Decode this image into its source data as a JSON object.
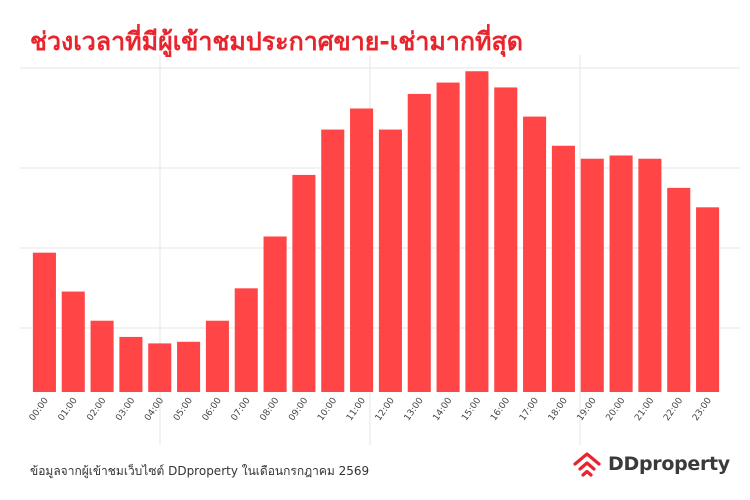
{
  "title": "ช่วงเวลาที่มีผู้เข้าชมประกาศขาย-เช่ามากที่สุด",
  "footnote": "ข้อมูลจากผู้เข้าชมเว็บไซต์ DDproperty ในเดือนกรกฎาคม 2569",
  "brand": {
    "name": "DDproperty",
    "logo_icon": "ddproperty-roof-logo-icon",
    "color": "#e8242d"
  },
  "colors": {
    "bar": "#ff4545",
    "title": "#e8242d",
    "grid": "#e6e6e6"
  },
  "chart_data": {
    "type": "bar",
    "categories": [
      "00:00",
      "01:00",
      "02:00",
      "03:00",
      "04:00",
      "05:00",
      "06:00",
      "07:00",
      "08:00",
      "09:00",
      "10:00",
      "11:00",
      "12:00",
      "13:00",
      "14:00",
      "15:00",
      "16:00",
      "17:00",
      "18:00",
      "19:00",
      "20:00",
      "21:00",
      "22:00",
      "23:00"
    ],
    "values": [
      43,
      31,
      22,
      17,
      15,
      15.5,
      22,
      32,
      48,
      67,
      81,
      87.5,
      81,
      92,
      95.5,
      99,
      94,
      85,
      76,
      72,
      73,
      72,
      63,
      57
    ],
    "ylim": [
      0,
      100
    ],
    "y_tick_labels": "none",
    "grid": true,
    "legend": "none"
  }
}
